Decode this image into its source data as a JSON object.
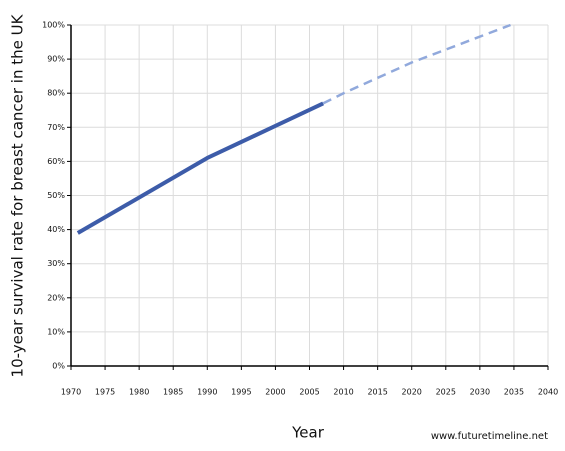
{
  "chart_data": {
    "type": "line",
    "ylabel": "10-year survival rate for breast cancer in the UK",
    "xlabel": "Year",
    "source": "www.futuretimeline.net",
    "series": [
      {
        "color": "#3d5ca9",
        "dash": false,
        "x": [
          1971,
          1990,
          2007
        ],
        "values": [
          39,
          61,
          77
        ]
      },
      {
        "color": "#91a9dc",
        "dash": true,
        "x": [
          2007,
          2010,
          2020,
          2034.5
        ],
        "values": [
          77,
          80,
          89,
          100
        ]
      }
    ],
    "xlim": [
      1970,
      2040
    ],
    "xticks": [
      1970,
      1975,
      1980,
      1985,
      1990,
      1995,
      2000,
      2005,
      2010,
      2015,
      2020,
      2025,
      2030,
      2035,
      2040
    ],
    "ylim": [
      0,
      100
    ],
    "yticks": [
      {
        "value": 0,
        "label": "0%"
      },
      {
        "value": 10,
        "label": "10%"
      },
      {
        "value": 20,
        "label": "20%"
      },
      {
        "value": 30,
        "label": "30%"
      },
      {
        "value": 40,
        "label": "40%"
      },
      {
        "value": 50,
        "label": "50%"
      },
      {
        "value": 60,
        "label": "60%"
      },
      {
        "value": 70,
        "label": "70%"
      },
      {
        "value": 80,
        "label": "80%"
      },
      {
        "value": 90,
        "label": "90%"
      },
      {
        "value": 100,
        "label": "100%"
      }
    ],
    "grid": true
  }
}
